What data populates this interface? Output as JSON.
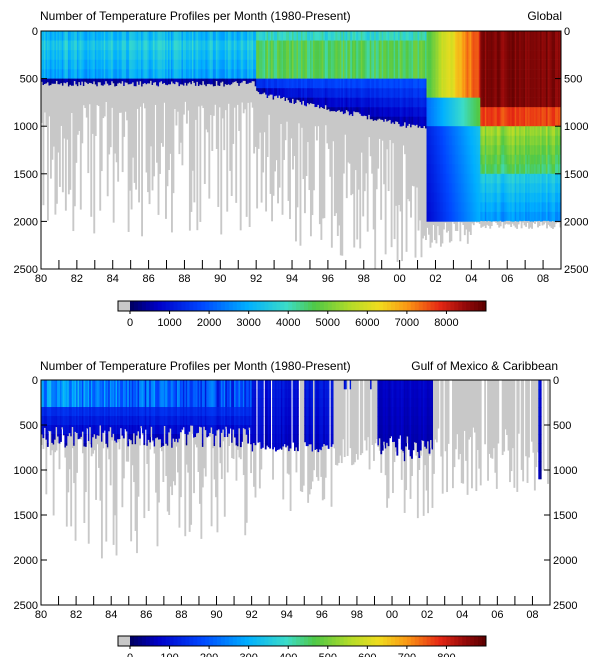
{
  "chart_data": [
    {
      "type": "heatmap",
      "title": "Number of Temperature Profiles per Month (1980-Present)",
      "region": "Global",
      "xlim": [
        1980,
        2009
      ],
      "ylim": [
        2500,
        0
      ],
      "x_ticks": [
        "80",
        "82",
        "84",
        "86",
        "88",
        "90",
        "92",
        "94",
        "96",
        "98",
        "00",
        "02",
        "04",
        "06",
        "08"
      ],
      "y_ticks_left": [
        "0",
        "500",
        "1000",
        "1500",
        "2000",
        "2500"
      ],
      "y_ticks_right": [
        "0",
        "500",
        "1000",
        "1500",
        "2000",
        "2500"
      ],
      "colorbar": {
        "min": 0,
        "max": 9000,
        "ticks": [
          "0",
          "1000",
          "2000",
          "3000",
          "4000",
          "5000",
          "6000",
          "7000",
          "8000"
        ],
        "no_data_color": "#c8c8c8"
      },
      "regimes": [
        {
          "x_range": [
            1980,
            1992
          ],
          "depth_m": 0,
          "value": 3800
        },
        {
          "x_range": [
            1980,
            1992
          ],
          "depth_m": 250,
          "value": 3500
        },
        {
          "x_range": [
            1980,
            1992
          ],
          "depth_m": 500,
          "value": 900
        },
        {
          "x_range": [
            1992,
            2001.5
          ],
          "depth_m": 0,
          "value": 4600
        },
        {
          "x_range": [
            1992,
            2001.5
          ],
          "depth_m": 600,
          "value": 1500
        },
        {
          "x_range": [
            2001.5,
            2004
          ],
          "depth_m": 1500,
          "value": 1100
        },
        {
          "x_range": [
            2004.5,
            2009
          ],
          "depth_m": 0,
          "value": 8600
        },
        {
          "x_range": [
            2004.5,
            2009
          ],
          "depth_m": 800,
          "value": 7200
        },
        {
          "x_range": [
            2004.5,
            2009
          ],
          "depth_m": 1500,
          "value": 3000
        }
      ]
    },
    {
      "type": "heatmap",
      "title": "Number of Temperature Profiles per Month (1980-Present)",
      "region": "Gulf of Mexico & Caribbean",
      "xlim": [
        1980,
        2009
      ],
      "ylim": [
        2500,
        0
      ],
      "x_ticks": [
        "80",
        "82",
        "84",
        "86",
        "88",
        "90",
        "92",
        "94",
        "96",
        "98",
        "00",
        "02",
        "04",
        "06",
        "08"
      ],
      "y_ticks_left": [
        "0",
        "500",
        "1000",
        "1500",
        "2000",
        "2500"
      ],
      "y_ticks_right": [
        "0",
        "500",
        "1000",
        "1500",
        "2000",
        "2500"
      ],
      "colorbar": {
        "min": 0,
        "max": 900,
        "ticks": [
          "0",
          "100",
          "200",
          "300",
          "400",
          "500",
          "600",
          "700",
          "800"
        ],
        "no_data_color": "#c8c8c8"
      },
      "regimes": [
        {
          "x_range": [
            1980,
            1990
          ],
          "depth_m": 0,
          "value": 300
        },
        {
          "x_range": [
            1980,
            1990
          ],
          "depth_m": 400,
          "value": 130
        },
        {
          "x_range": [
            1990,
            1996.5
          ],
          "depth_m": 0,
          "value": 90
        },
        {
          "x_range": [
            1999.3,
            2002
          ],
          "depth_m": 0,
          "value": 60
        },
        {
          "x_range": [
            1999.3,
            2002
          ],
          "depth_m": 700,
          "value": 30
        }
      ]
    }
  ]
}
